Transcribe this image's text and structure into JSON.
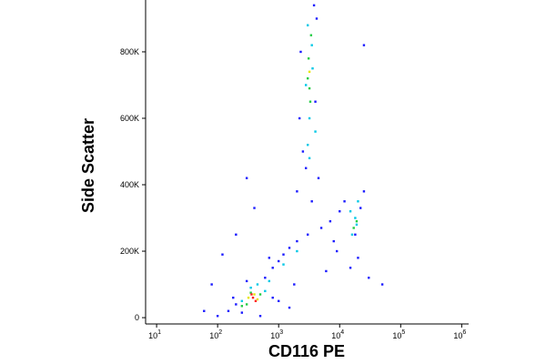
{
  "chart_data": {
    "type": "scatter",
    "x_label": "CD116 PE",
    "y_label": "Side Scatter",
    "x_log": true,
    "xlim": [
      6.6,
      1300000
    ],
    "xticks": [
      {
        "value": 10,
        "label": "10",
        "sup": "1"
      },
      {
        "value": 100,
        "label": "10",
        "sup": "2"
      },
      {
        "value": 1000,
        "label": "10",
        "sup": "3"
      },
      {
        "value": 10000,
        "label": "10",
        "sup": "4"
      },
      {
        "value": 100000,
        "label": "10",
        "sup": "5"
      },
      {
        "value": 1000000,
        "label": "10",
        "sup": "6"
      }
    ],
    "ylim": [
      -19000,
      956000
    ],
    "yticks": [
      0,
      {
        "value": 200000,
        "label": "200K"
      },
      {
        "value": 400000,
        "label": "400K"
      },
      {
        "value": 600000,
        "label": "600K"
      },
      {
        "value": 800000,
        "label": "800K"
      }
    ],
    "series": [
      {
        "color": "#1a1aff",
        "x": [
          150,
          200,
          250,
          300,
          180,
          600,
          800,
          1000,
          1200,
          1500,
          2000,
          3000,
          5000,
          7000,
          10000,
          12000,
          25000,
          20000,
          15000,
          30000,
          50000,
          2500,
          2200,
          4000,
          2300,
          4200,
          3800,
          2800,
          4500,
          2000,
          400,
          300,
          1000,
          1500,
          60,
          80,
          100,
          500,
          25000,
          6000,
          8000,
          800,
          120,
          200,
          9000,
          18000,
          22000,
          3500,
          700,
          1800
        ],
        "values": [
          20000,
          40000,
          15000,
          110000,
          60000,
          120000,
          150000,
          170000,
          190000,
          210000,
          230000,
          250000,
          270000,
          290000,
          320000,
          350000,
          380000,
          180000,
          150000,
          120000,
          100000,
          500000,
          600000,
          650000,
          800000,
          900000,
          940000,
          450000,
          420000,
          380000,
          330000,
          420000,
          50000,
          30000,
          20000,
          100000,
          5000,
          5000,
          820000,
          140000,
          230000,
          60000,
          190000,
          250000,
          200000,
          250000,
          330000,
          350000,
          180000,
          100000
        ]
      },
      {
        "color": "#00c8e6",
        "x": [
          350,
          450,
          250,
          600,
          3000,
          3500,
          2800,
          3200,
          3000,
          3600,
          18000,
          20000,
          16000,
          19000,
          2000,
          1200,
          700,
          3200,
          4000,
          15000
        ],
        "values": [
          90000,
          100000,
          50000,
          80000,
          880000,
          820000,
          700000,
          600000,
          520000,
          750000,
          300000,
          350000,
          250000,
          280000,
          200000,
          160000,
          110000,
          480000,
          560000,
          320000
        ]
      },
      {
        "color": "#22cc44",
        "x": [
          350,
          500,
          300,
          3000,
          3300,
          3100,
          3400,
          3200,
          19000,
          17000,
          250
        ],
        "values": [
          75000,
          70000,
          40000,
          720000,
          650000,
          780000,
          850000,
          690000,
          290000,
          270000,
          35000
        ]
      },
      {
        "color": "#e6e600",
        "x": [
          400,
          450,
          320,
          3200
        ],
        "values": [
          70000,
          55000,
          60000,
          740000
        ]
      },
      {
        "color": "#ff2020",
        "x": [
          380,
          420,
          360
        ],
        "values": [
          60000,
          50000,
          70000
        ]
      }
    ]
  }
}
